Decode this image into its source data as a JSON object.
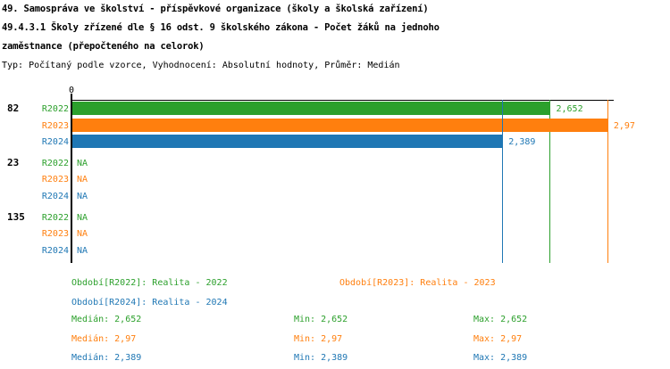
{
  "header": {
    "title_line1": "49. Samospráva ve školství - příspěvkové organizace (školy a školská zařízení)",
    "title_line2": "49.4.3.1 Školy zřízené dle § 16 odst. 9 školského zákona - Počet žáků na jednoho",
    "title_line3": "zaměstnance (přepočteného na celorok)",
    "subtitle": "Typ: Počítaný podle vzorce, Vyhodnocení: Absolutní hodnoty, Průměr: Medián"
  },
  "colors": {
    "green": "#2ca02c",
    "orange": "#ff7f0e",
    "blue": "#1f77b4",
    "axis": "#000000"
  },
  "chart_data": {
    "type": "bar",
    "orientation": "horizontal",
    "value_axis": {
      "min": 0,
      "max": 3,
      "origin_label": "0",
      "position": "top"
    },
    "series": [
      {
        "name": "R2022",
        "color": "#2ca02c",
        "median": 2.652,
        "min": 2.652,
        "max": 2.652
      },
      {
        "name": "R2023",
        "color": "#ff7f0e",
        "median": 2.97,
        "min": 2.97,
        "max": 2.97
      },
      {
        "name": "R2024",
        "color": "#1f77b4",
        "median": 2.389,
        "min": 2.389,
        "max": 2.389
      }
    ],
    "groups": [
      {
        "label": "82",
        "rows": [
          {
            "period": "R2022",
            "value": 2.652,
            "label": "2,652"
          },
          {
            "period": "R2023",
            "value": 2.97,
            "label": "2,97"
          },
          {
            "period": "R2024",
            "value": 2.389,
            "label": "2,389"
          }
        ]
      },
      {
        "label": "23",
        "rows": [
          {
            "period": "R2022",
            "value": null,
            "label": "NA"
          },
          {
            "period": "R2023",
            "value": null,
            "label": "NA"
          },
          {
            "period": "R2024",
            "value": null,
            "label": "NA"
          }
        ]
      },
      {
        "label": "135",
        "rows": [
          {
            "period": "R2022",
            "value": null,
            "label": "NA"
          },
          {
            "period": "R2023",
            "value": null,
            "label": "NA"
          },
          {
            "period": "R2024",
            "value": null,
            "label": "NA"
          }
        ]
      }
    ],
    "median_lines": [
      {
        "series": "R2022",
        "value": 2.652,
        "color": "#2ca02c"
      },
      {
        "series": "R2023",
        "value": 2.97,
        "color": "#ff7f0e"
      },
      {
        "series": "R2024",
        "value": 2.389,
        "color": "#1f77b4"
      }
    ]
  },
  "legend": {
    "items": [
      {
        "label": "Období[R2022]: Realita - 2022",
        "color": "#2ca02c"
      },
      {
        "label": "Období[R2023]: Realita - 2023",
        "color": "#ff7f0e"
      },
      {
        "label": "Období[R2024]: Realita - 2024",
        "color": "#1f77b4"
      }
    ]
  },
  "stats": {
    "rows": [
      {
        "color": "#2ca02c",
        "median": "Medián: 2,652",
        "min": "Min: 2,652",
        "max": "Max: 2,652"
      },
      {
        "color": "#ff7f0e",
        "median": "Medián: 2,97",
        "min": "Min: 2,97",
        "max": "Max: 2,97"
      },
      {
        "color": "#1f77b4",
        "median": "Medián: 2,389",
        "min": "Min: 2,389",
        "max": "Max: 2,389"
      }
    ]
  }
}
